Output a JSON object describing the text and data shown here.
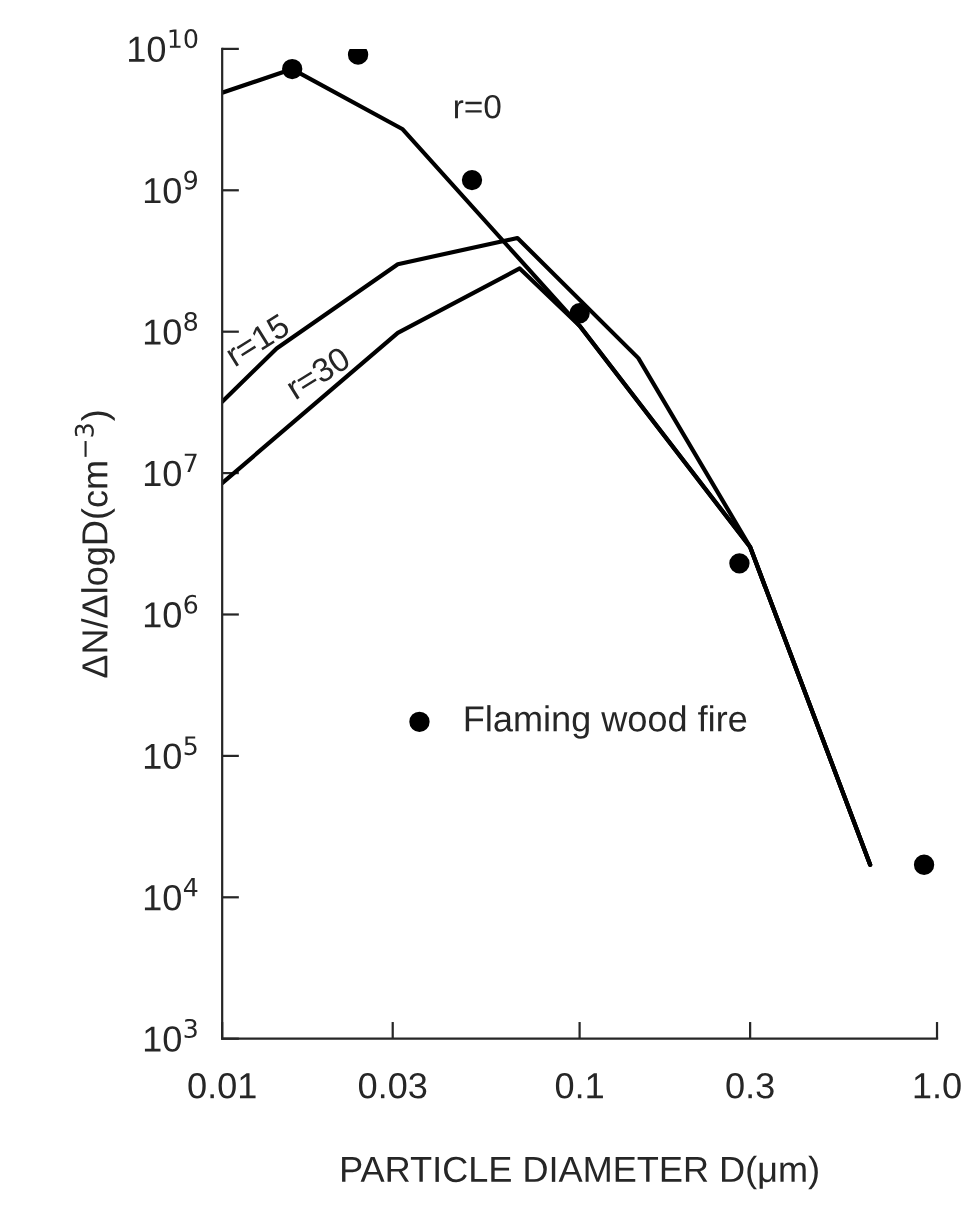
{
  "chart_data": {
    "type": "line",
    "xlabel": "PARTICLE DIAMETER D(μm)",
    "ylabel": "ΔN/ΔlogD(cm$^{−3}$)",
    "log": "xy",
    "xlim": [
      0.01,
      1.0
    ],
    "ylim": [
      1000,
      10000000000
    ],
    "xticks": [
      0.01,
      0.03,
      0.1,
      0.3,
      {
        "value": 1.0,
        "label": "1.0"
      }
    ],
    "yticks": [
      {
        "value": 1000,
        "label": "10$^{3}$"
      },
      {
        "value": 10000,
        "label": "10$^{4}$"
      },
      {
        "value": 100000,
        "label": "10$^{5}$"
      },
      {
        "value": 1000000,
        "label": "10$^{6}$"
      },
      {
        "value": 10000000,
        "label": "10$^{7}$"
      },
      {
        "value": 100000000,
        "label": "10$^{8}$"
      },
      {
        "value": 1000000000,
        "label": "10$^{9}$"
      },
      {
        "value": 10000000000,
        "label": "10$^{10}$"
      }
    ],
    "grid": false,
    "legend": "left",
    "marker": "none",
    "line_style": "solid",
    "series": [
      {
        "name": "r=0",
        "color": "#000000",
        "x": [
          0.01,
          0.0157,
          0.032,
          0.1,
          0.3,
          0.65
        ],
        "values": [
          4900000000,
          7200000000,
          2700000000,
          110000000,
          3000000,
          17000
        ]
      },
      {
        "name": "r=15",
        "color": "#000000",
        "x": [
          0.01,
          0.0142,
          0.031,
          0.067,
          0.146,
          0.3,
          0.65
        ],
        "values": [
          32000000,
          76000000,
          300000000,
          460000000,
          65000000,
          3000000,
          17000
        ]
      },
      {
        "name": "r=30",
        "color": "#000000",
        "x": [
          0.01,
          0.031,
          0.068,
          0.1,
          0.3,
          0.65
        ],
        "values": [
          8500000,
          98000000,
          280000000,
          110000000,
          3000000,
          17000
        ]
      },
      {
        "name": "Flaming wood fire",
        "type": "scatter",
        "marker": "circle",
        "color": "#000000",
        "x": [
          0.0157,
          0.024,
          0.05,
          0.1,
          0.28,
          0.92
        ],
        "values": [
          7200000000,
          9100000000,
          1180000000,
          135000000,
          2300000,
          17000
        ]
      }
    ]
  }
}
